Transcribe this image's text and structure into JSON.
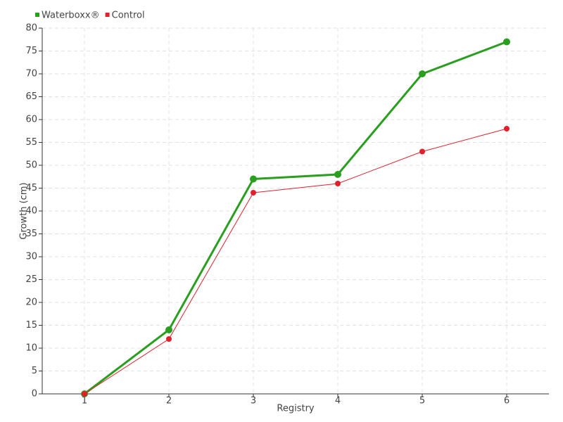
{
  "chart_data": {
    "type": "line",
    "categories": [
      "1",
      "2",
      "3",
      "4",
      "5",
      "6"
    ],
    "series": [
      {
        "name": "Waterboxx®",
        "color": "#2a9e1f",
        "values": [
          0,
          14,
          47,
          48,
          70,
          77
        ]
      },
      {
        "name": "Control",
        "color": "#e2202b",
        "values": [
          0,
          12,
          44,
          46,
          53,
          58
        ]
      }
    ],
    "ylim": [
      0,
      80
    ],
    "yticks": [
      0,
      5,
      10,
      15,
      20,
      25,
      30,
      35,
      40,
      45,
      50,
      55,
      60,
      65,
      70,
      75,
      80
    ],
    "x_label": "Registry",
    "y_label": "Growth (cm)",
    "grid": true,
    "legend": "top-left"
  }
}
